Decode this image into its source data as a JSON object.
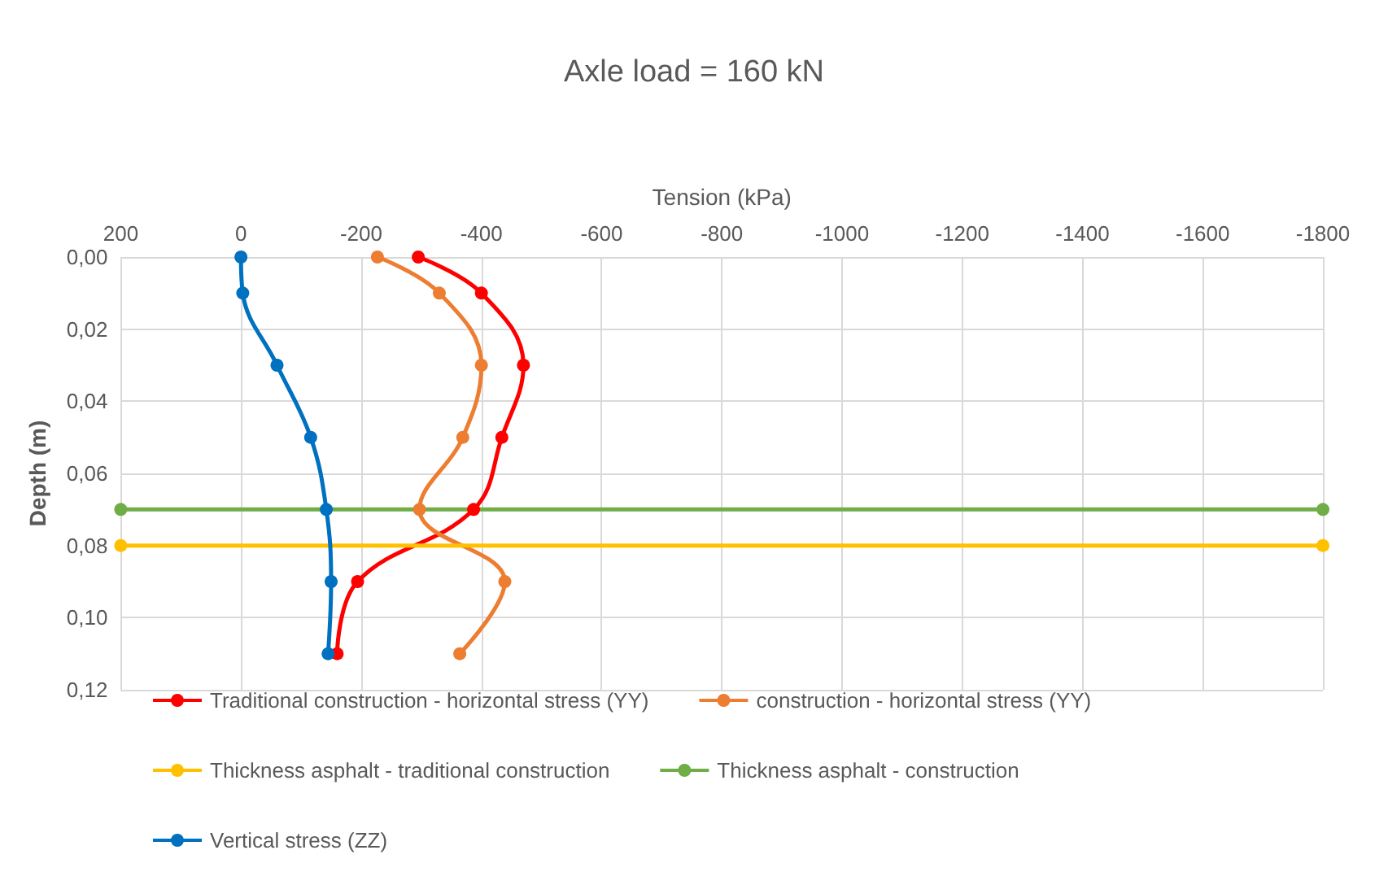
{
  "chart_data": {
    "type": "line",
    "title": "Axle load = 160 kN",
    "xlabel": "Tension (kPa)",
    "ylabel": "Depth (m)",
    "xlim": [
      200,
      -1800
    ],
    "xticks": [
      200,
      0,
      -200,
      -400,
      -600,
      -800,
      -1000,
      -1200,
      -1400,
      -1600,
      -1800
    ],
    "ylim": [
      0.12,
      0
    ],
    "yticks": [
      {
        "value": 0,
        "label": "0,00"
      },
      {
        "value": 0.02,
        "label": "0,02"
      },
      {
        "value": 0.04,
        "label": "0,04"
      },
      {
        "value": 0.06,
        "label": "0,06"
      },
      {
        "value": 0.08,
        "label": "0,08"
      },
      {
        "value": 0.1,
        "label": "0,10"
      },
      {
        "value": 0.12,
        "label": "0,12"
      }
    ],
    "grid": true,
    "legend": "bottom",
    "marker": "circle",
    "line_style": "solid",
    "series": [
      {
        "name": "Traditional construction - horizontal stress (YY)",
        "color": "#ff0000",
        "x": [
          -295,
          -400,
          -470,
          -434,
          -387,
          -194,
          -160
        ],
        "values": [
          0,
          0.01,
          0.03,
          0.05,
          0.07,
          0.09,
          0.11
        ]
      },
      {
        "name": "construction - horizontal stress (YY)",
        "color": "#ed7d31",
        "x": [
          -227,
          -330,
          -400,
          -369,
          -297,
          -439,
          -364
        ],
        "values": [
          0,
          0.01,
          0.03,
          0.05,
          0.07,
          0.09,
          0.11
        ]
      },
      {
        "name": "Thickness asphalt - traditional construction",
        "color": "#ffc000",
        "x": [
          200,
          -1800
        ],
        "values": [
          0.08,
          0.08
        ]
      },
      {
        "name": "Thickness asphalt - construction",
        "color": "#70ad47",
        "x": [
          200,
          -1800
        ],
        "values": [
          0.07,
          0.07
        ]
      },
      {
        "name": "Vertical stress (ZZ)",
        "color": "#0070c0",
        "x": [
          0,
          -3,
          -60,
          -116,
          -142,
          -150,
          -145
        ],
        "values": [
          0,
          0.01,
          0.03,
          0.05,
          0.07,
          0.09,
          0.11
        ]
      }
    ]
  }
}
